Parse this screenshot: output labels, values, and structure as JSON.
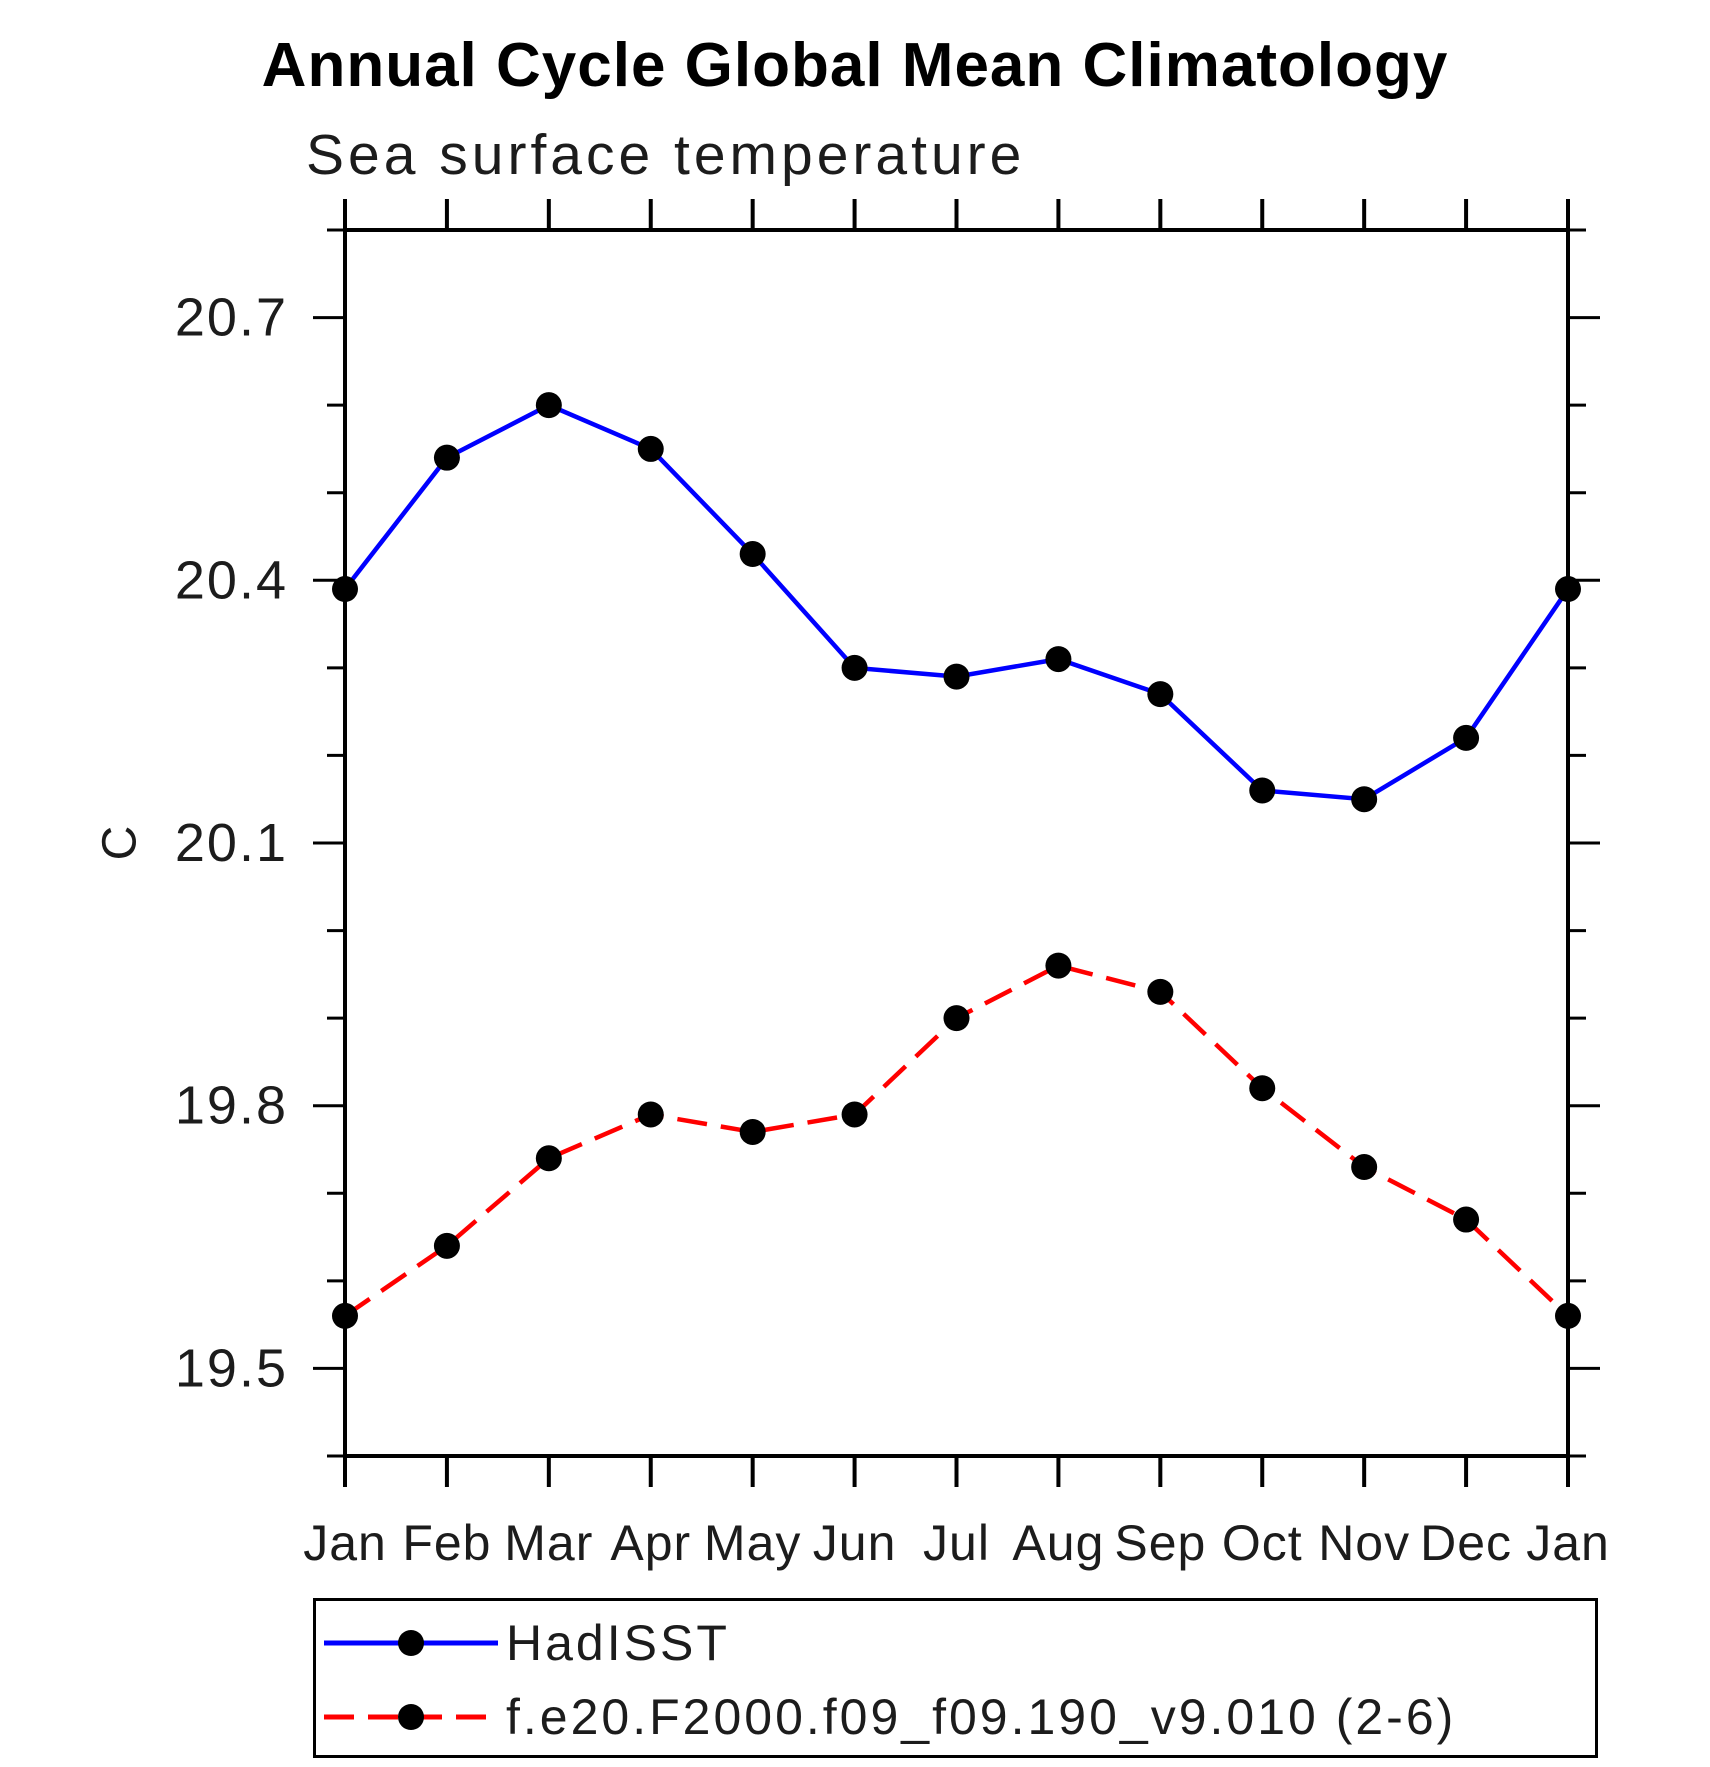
{
  "page": {
    "background": "#ffffff"
  },
  "chart_data": {
    "type": "line",
    "title": "Annual Cycle Global Mean Climatology",
    "subtitle": "Sea surface temperature",
    "ylabel": "C",
    "xlabel": "",
    "categories": [
      "Jan",
      "Feb",
      "Mar",
      "Apr",
      "May",
      "Jun",
      "Jul",
      "Aug",
      "Sep",
      "Oct",
      "Nov",
      "Dec",
      "Jan"
    ],
    "ylim": [
      19.4,
      20.8
    ],
    "y_ticks_major": [
      19.5,
      19.8,
      20.1,
      20.4,
      20.7
    ],
    "y_minor_step": 0.1,
    "grid": false,
    "legend_position": "bottom-left box",
    "axis_color": "#000000",
    "text_color": "#1c1c1c",
    "marker_color": "#000000",
    "series": [
      {
        "name": "HadISST",
        "color": "#0000ff",
        "style": "solid",
        "marker": "circle",
        "values": [
          20.39,
          20.54,
          20.6,
          20.55,
          20.43,
          20.3,
          20.29,
          20.31,
          20.27,
          20.16,
          20.15,
          20.22,
          20.39
        ]
      },
      {
        "name": "f.e20.F2000.f09_f09.190_v9.010 (2-6)",
        "color": "#ff0000",
        "style": "dashed",
        "marker": "circle",
        "values": [
          19.56,
          19.64,
          19.74,
          19.79,
          19.77,
          19.79,
          19.9,
          19.96,
          19.93,
          19.82,
          19.73,
          19.67,
          19.56
        ]
      }
    ]
  }
}
